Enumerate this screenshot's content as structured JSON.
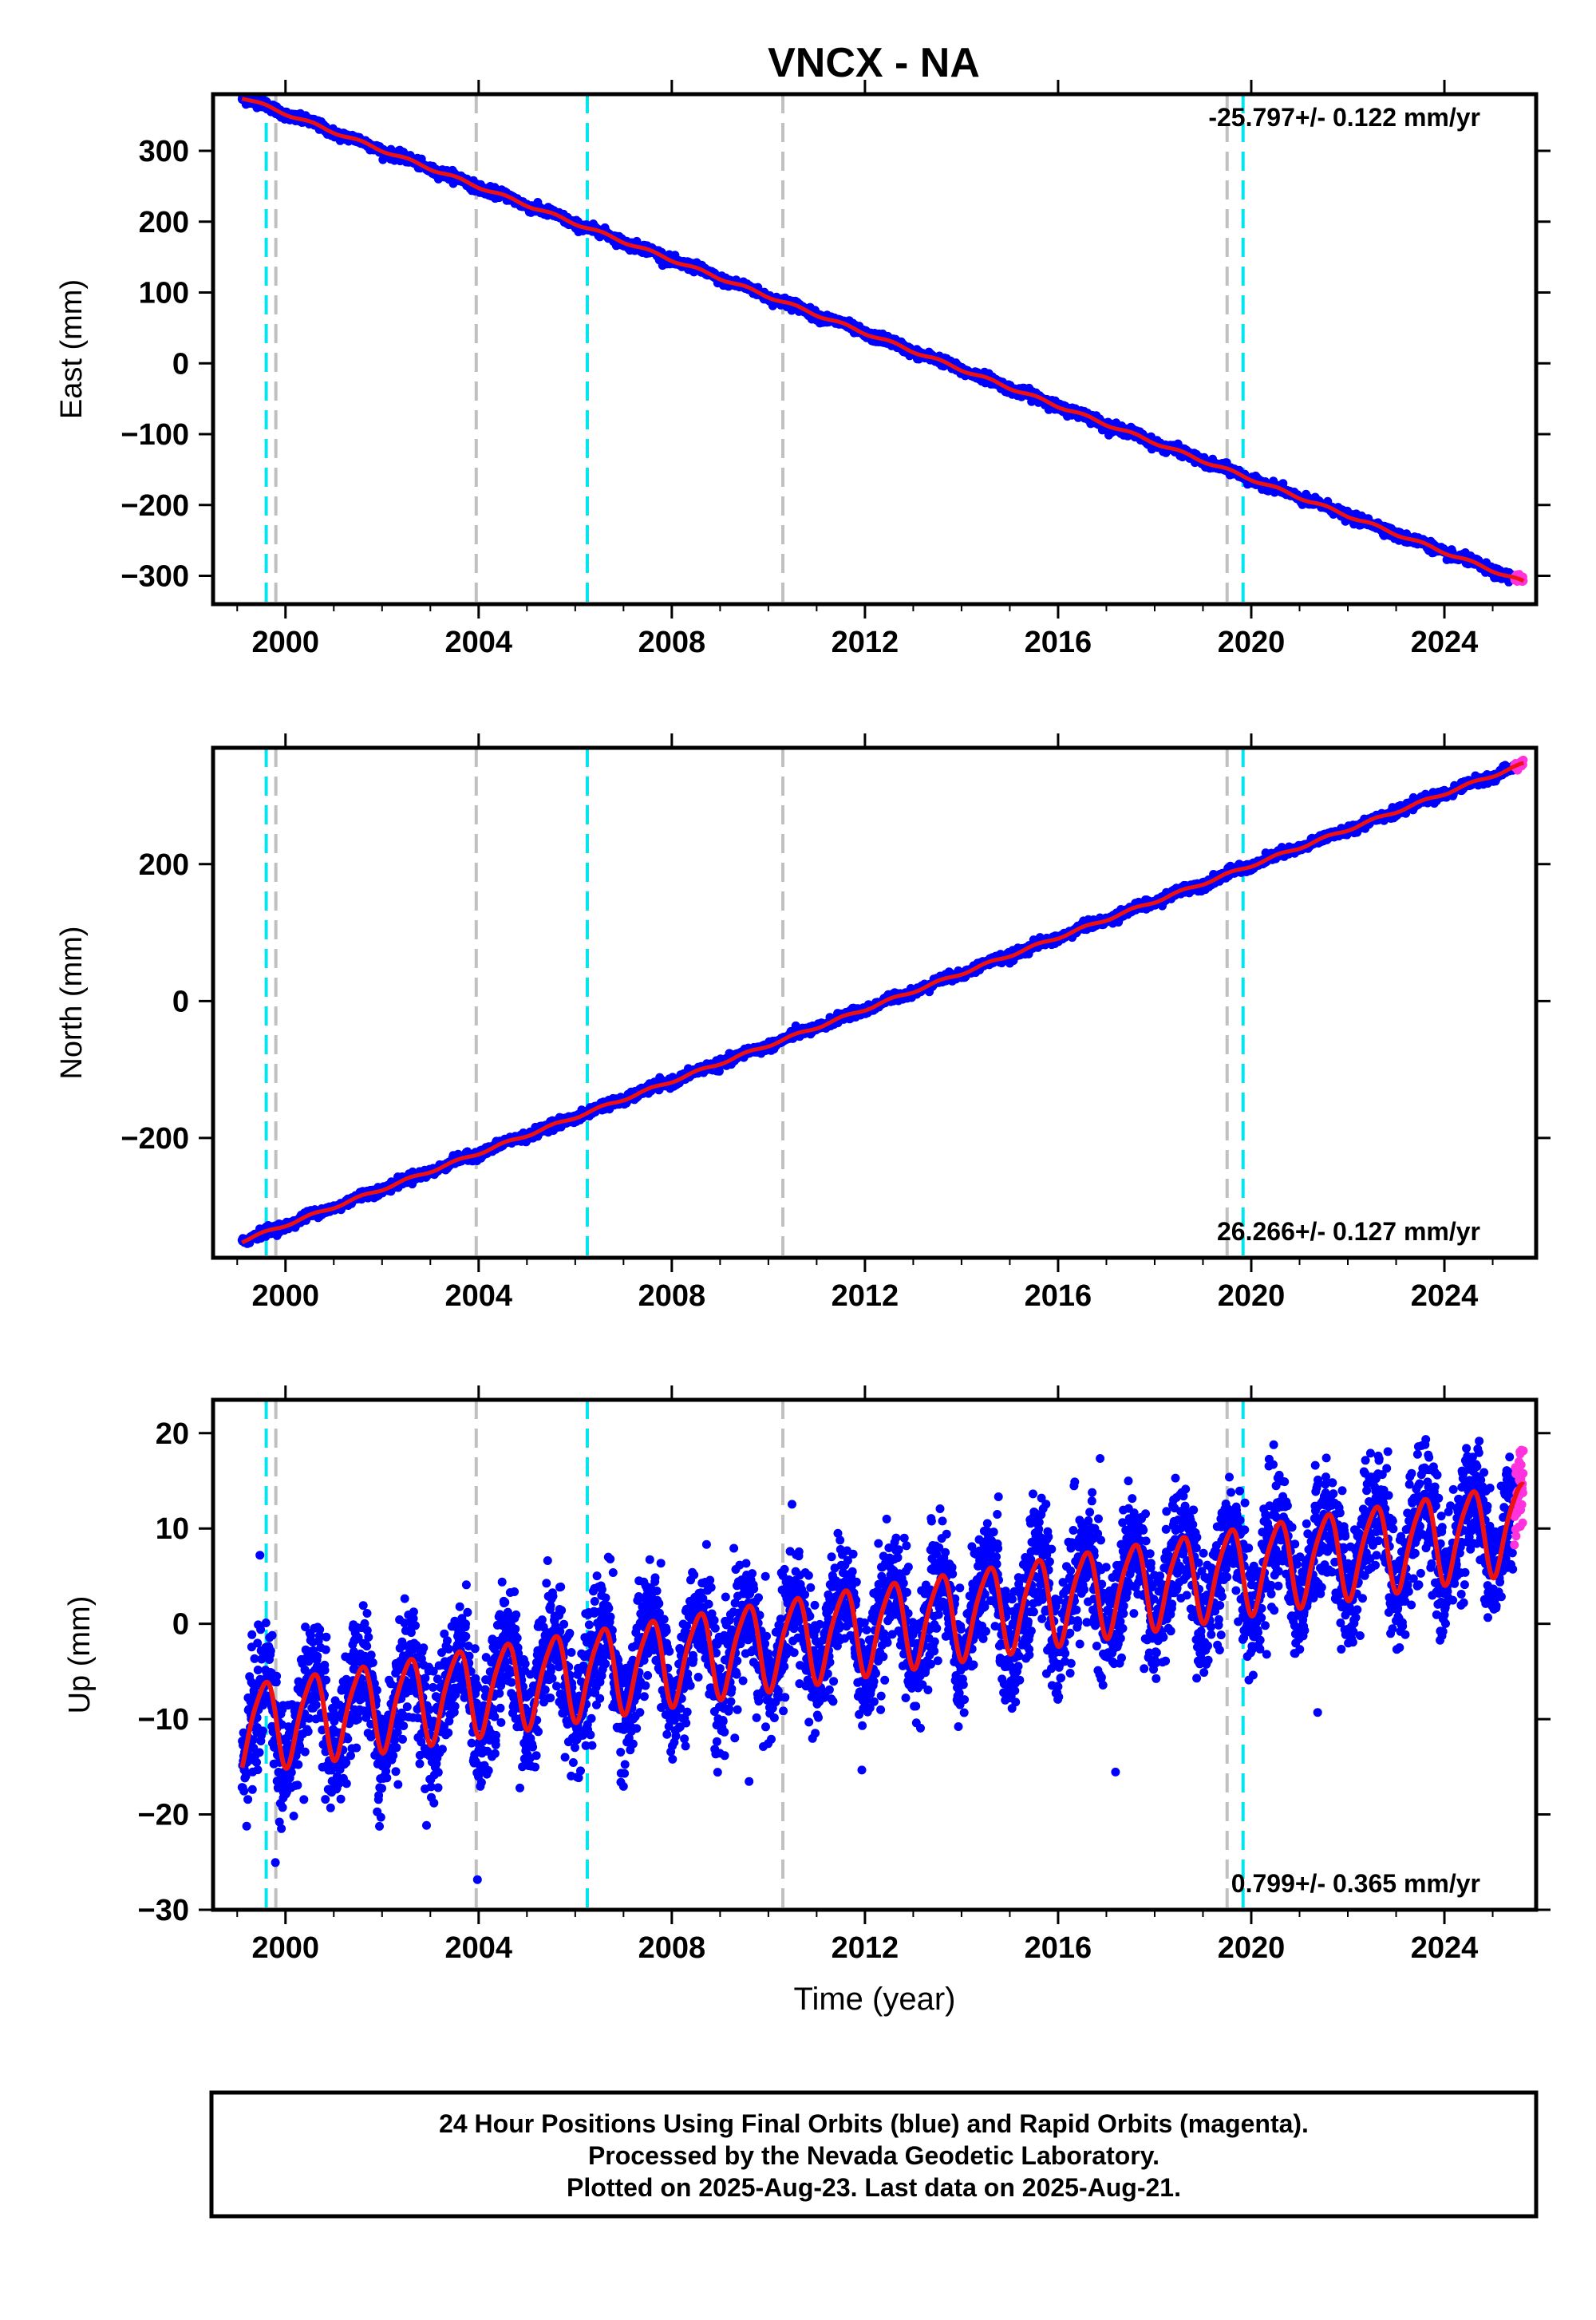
{
  "title": "VNCX - NA",
  "footer_lines": [
    "24 Hour Positions Using Final Orbits (blue) and Rapid Orbits (magenta).",
    "Processed by the Nevada Geodetic Laboratory.",
    "Plotted on 2025-Aug-23. Last data on 2025-Aug-21."
  ],
  "colors": {
    "final": "#0000ff",
    "rapid": "#ff33dd",
    "model": "#ee1111",
    "equipment_change": "#00e5ee",
    "other_change": "#c0c0c0"
  },
  "chart_data": [
    {
      "type": "scatter",
      "component": "East",
      "ylabel": "East (mm)",
      "rate_label": "-25.797+/- 0.122 mm/yr",
      "xlim": [
        1998.5,
        2025.9
      ],
      "ylim": [
        -340,
        380
      ],
      "xticks": [
        2000,
        2004,
        2008,
        2012,
        2016,
        2020,
        2024
      ],
      "xtick_labels": [
        "2000",
        "2004",
        "2008",
        "2012",
        "2016",
        "2020",
        "2024"
      ],
      "yticks": [
        300,
        200,
        100,
        0,
        -100,
        -200,
        -300
      ],
      "ytick_labels": [
        "300",
        "200",
        "100",
        "0",
        "−100",
        "−200",
        "−300"
      ],
      "data_range": [
        1999.1,
        2025.64
      ],
      "model": {
        "slope": -25.797,
        "ref_year": 2012,
        "ref_value": 43,
        "annual_amp": 2,
        "semiannual_amp": 0
      },
      "rapid_range": [
        2025.45,
        2025.64
      ],
      "cyan_lines": [
        1999.6,
        2006.25,
        2019.83
      ],
      "gray_lines": [
        1999.8,
        2003.95,
        2010.3,
        2019.5
      ]
    },
    {
      "type": "scatter",
      "component": "North",
      "ylabel": "North (mm)",
      "rate_label": "26.266+/- 0.127 mm/yr",
      "xlim": [
        1998.5,
        2025.9
      ],
      "ylim": [
        -375,
        370
      ],
      "xticks": [
        2000,
        2004,
        2008,
        2012,
        2016,
        2020,
        2024
      ],
      "xtick_labels": [
        "2000",
        "2004",
        "2008",
        "2012",
        "2016",
        "2020",
        "2024"
      ],
      "yticks": [
        200,
        0,
        -200
      ],
      "ytick_labels": [
        "200",
        "0",
        "−200"
      ],
      "data_range": [
        1999.1,
        2025.64
      ],
      "model": {
        "slope": 26.266,
        "ref_year": 2012,
        "ref_value": -12,
        "annual_amp": 2,
        "semiannual_amp": 0
      },
      "rapid_range": [
        2025.45,
        2025.64
      ],
      "cyan_lines": [
        1999.6,
        2006.25,
        2019.83
      ],
      "gray_lines": [
        1999.8,
        2003.95,
        2010.3,
        2019.5
      ]
    },
    {
      "type": "scatter",
      "component": "Up",
      "ylabel": "Up (mm)",
      "xlabel": "Time (year)",
      "rate_label": "0.799+/- 0.365 mm/yr",
      "xlim": [
        1998.5,
        2025.9
      ],
      "ylim": [
        -30,
        23.5
      ],
      "xticks": [
        2000,
        2004,
        2008,
        2012,
        2016,
        2020,
        2024
      ],
      "xtick_labels": [
        "2000",
        "2004",
        "2008",
        "2012",
        "2016",
        "2020",
        "2024"
      ],
      "yticks": [
        20,
        10,
        0,
        -10,
        -20,
        -30
      ],
      "ytick_labels": [
        "20",
        "10",
        "0",
        "−10",
        "−20",
        "−30"
      ],
      "data_range": [
        1999.1,
        2025.64
      ],
      "model": {
        "slope": 0.799,
        "ref_year": 2012,
        "ref_value": -0.5,
        "annual_amp": 4.5,
        "semiannual_amp": 0.8
      },
      "rapid_range": [
        2025.45,
        2025.64
      ],
      "cyan_lines": [
        1999.6,
        2006.25,
        2019.83
      ],
      "gray_lines": [
        1999.8,
        2003.95,
        2010.3,
        2019.5
      ]
    }
  ]
}
